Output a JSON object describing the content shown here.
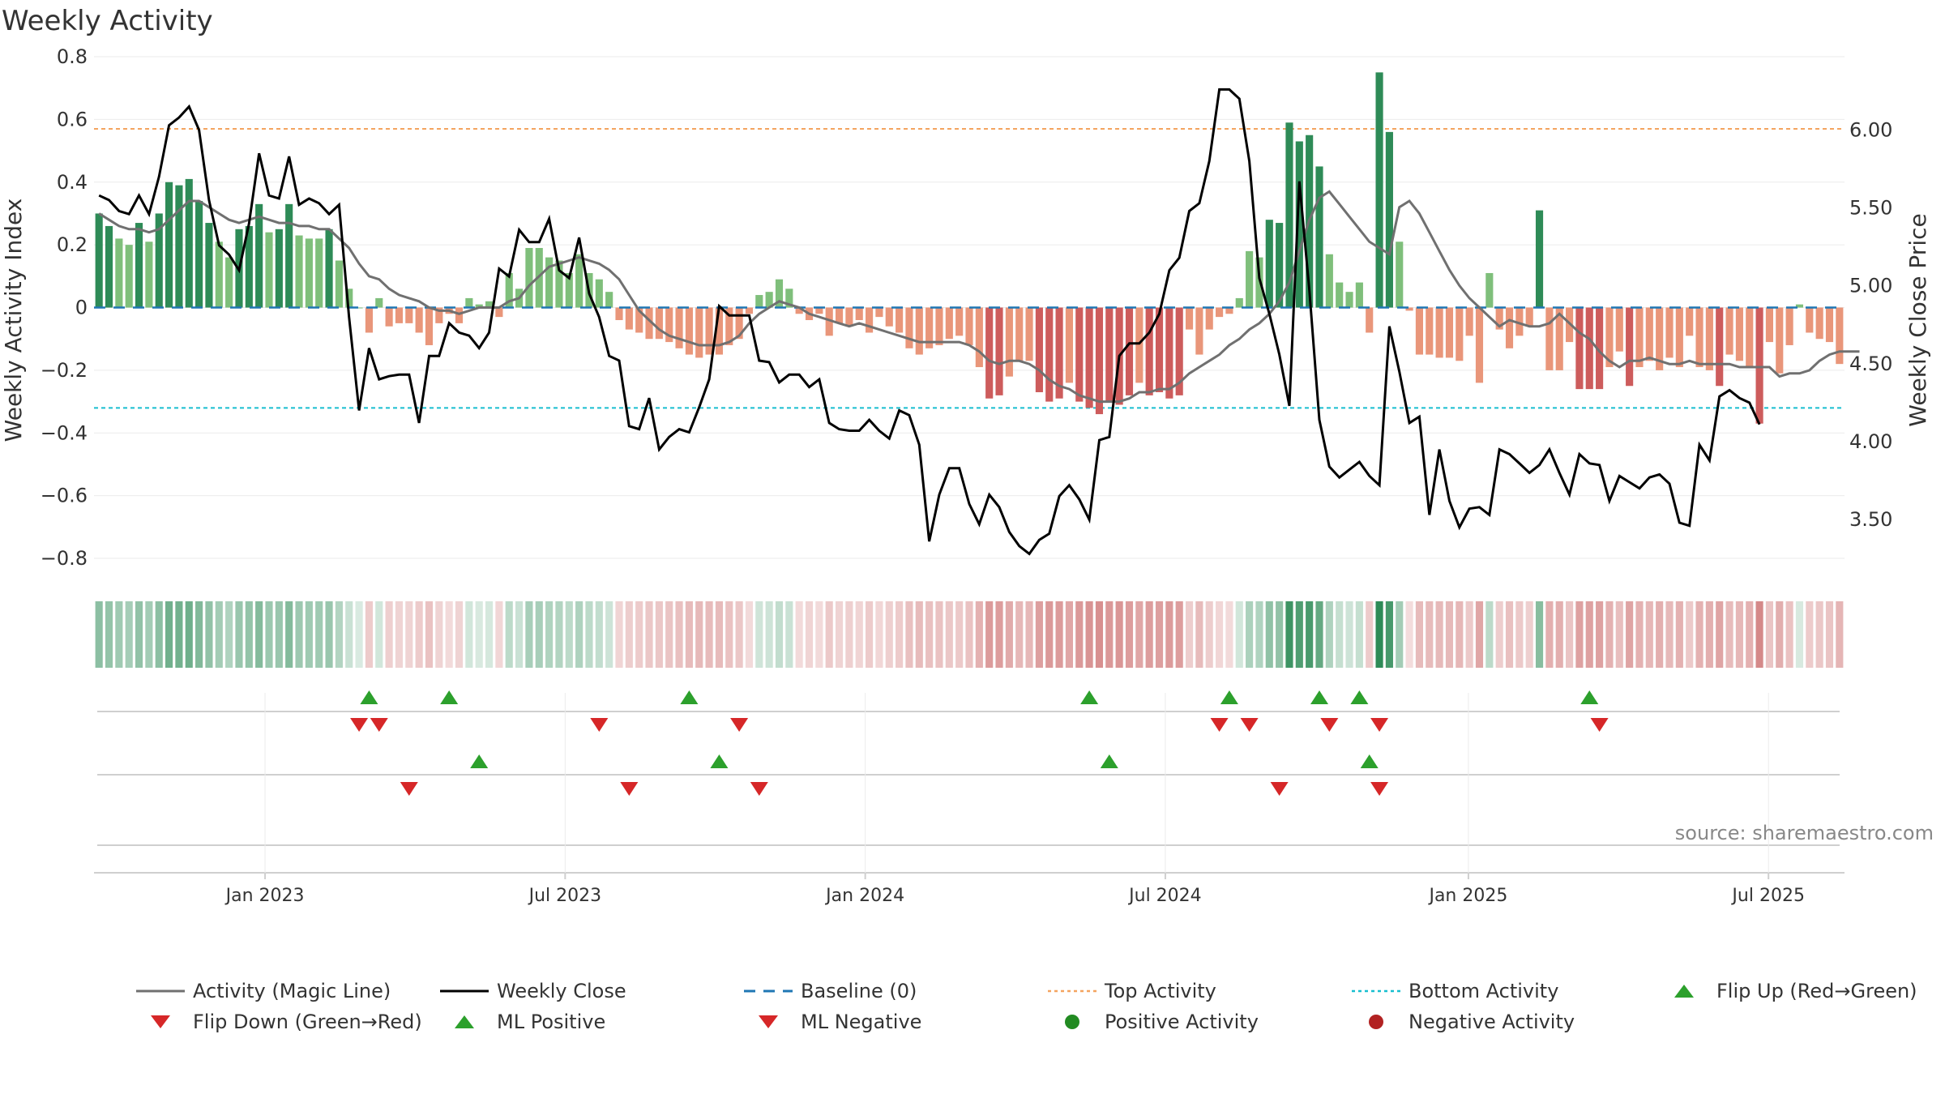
{
  "title": "Weekly Activity",
  "source": "source: sharemaestro.com",
  "colors": {
    "pos_strong": "#2e8b57",
    "pos_light": "#7fbf7b",
    "neg_strong": "#cd5c5c",
    "neg_light": "#e9967a",
    "magic_line": "#707070",
    "close_line": "#000000",
    "baseline": "#1f77b4",
    "top": "#f4a460",
    "bottom": "#17becf",
    "flip_up": "#2ca02c",
    "flip_down": "#d62728"
  },
  "chart_data": {
    "type": "bar",
    "title": "Weekly Activity",
    "ylabel": "Weekly Activity Index",
    "y2label": "Weekly Close Price",
    "ylim": [
      -0.88,
      0.8
    ],
    "y_ticks": [
      "0.8",
      "0.6",
      "0.4",
      "0.2",
      "0",
      "−0.2",
      "−0.4",
      "−0.6",
      "−0.8"
    ],
    "y_tick_values": [
      0.8,
      0.6,
      0.4,
      0.2,
      0,
      -0.2,
      -0.4,
      -0.6,
      -0.8
    ],
    "y2lim": [
      3.09,
      6.47
    ],
    "y2_ticks": [
      "6.00",
      "5.50",
      "5.00",
      "4.50",
      "4.00",
      "3.50"
    ],
    "y2_tick_values": [
      6.0,
      5.5,
      5.0,
      4.5,
      4.0,
      3.5
    ],
    "x_ticks": [
      "Jan 2023",
      "Jul 2023",
      "Jan 2024",
      "Jul 2024",
      "Jan 2025",
      "Jul 2025"
    ],
    "x_tick_weeks": [
      16.6,
      46.6,
      76.6,
      106.6,
      136.9,
      166.9
    ],
    "top_activity": 0.57,
    "bottom_activity": -0.32,
    "baseline": 0,
    "series": [
      {
        "name": "Weekly Activity Index",
        "values": [
          0.3,
          0.26,
          0.22,
          0.2,
          0.27,
          0.21,
          0.3,
          0.4,
          0.39,
          0.41,
          0.34,
          0.27,
          0.21,
          0.16,
          0.25,
          0.26,
          0.33,
          0.24,
          0.25,
          0.33,
          0.23,
          0.22,
          0.22,
          0.25,
          0.15,
          0.06,
          0,
          -0.08,
          0.03,
          -0.06,
          -0.05,
          -0.05,
          -0.08,
          -0.12,
          -0.05,
          -0.02,
          -0.05,
          0.03,
          0.01,
          0.02,
          -0.03,
          0.11,
          0.06,
          0.19,
          0.19,
          0.16,
          0.15,
          0.11,
          0.17,
          0.11,
          0.09,
          0.05,
          -0.04,
          -0.07,
          -0.08,
          -0.1,
          -0.1,
          -0.11,
          -0.13,
          -0.15,
          -0.16,
          -0.15,
          -0.15,
          -0.12,
          -0.1,
          -0.02,
          0.04,
          0.05,
          0.09,
          0.06,
          -0.02,
          -0.04,
          -0.02,
          -0.09,
          -0.05,
          -0.06,
          -0.04,
          -0.08,
          -0.03,
          -0.06,
          -0.08,
          -0.13,
          -0.15,
          -0.13,
          -0.12,
          -0.1,
          -0.09,
          -0.12,
          -0.19,
          -0.29,
          -0.28,
          -0.22,
          -0.17,
          -0.17,
          -0.27,
          -0.3,
          -0.29,
          -0.24,
          -0.3,
          -0.32,
          -0.34,
          -0.3,
          -0.31,
          -0.28,
          -0.24,
          -0.28,
          -0.27,
          -0.29,
          -0.28,
          -0.07,
          -0.15,
          -0.07,
          -0.03,
          -0.02,
          0.03,
          0.18,
          0.16,
          0.28,
          0.27,
          0.59,
          0.53,
          0.55,
          0.45,
          0.17,
          0.08,
          0.05,
          0.08,
          -0.08,
          0.75,
          0.56,
          0.21,
          -0.01,
          -0.15,
          -0.15,
          -0.16,
          -0.16,
          -0.17,
          -0.09,
          -0.24,
          0.11,
          -0.07,
          -0.13,
          -0.09,
          -0.06,
          0.31,
          -0.2,
          -0.2,
          -0.11,
          -0.26,
          -0.26,
          -0.26,
          -0.19,
          -0.14,
          -0.25,
          -0.19,
          -0.17,
          -0.2,
          -0.16,
          -0.19,
          -0.09,
          -0.19,
          -0.2,
          -0.25,
          -0.15,
          -0.17,
          -0.19,
          -0.37,
          -0.11,
          -0.21,
          -0.12,
          0.01,
          -0.08,
          -0.1,
          -0.11,
          -0.18
        ]
      },
      {
        "name": "Activity (Magic Line)",
        "values": [
          0.3,
          0.28,
          0.26,
          0.25,
          0.25,
          0.24,
          0.25,
          0.28,
          0.31,
          0.34,
          0.34,
          0.32,
          0.3,
          0.28,
          0.27,
          0.28,
          0.29,
          0.28,
          0.27,
          0.27,
          0.26,
          0.26,
          0.25,
          0.25,
          0.22,
          0.19,
          0.14,
          0.1,
          0.09,
          0.06,
          0.04,
          0.03,
          0.02,
          0.0,
          -0.01,
          -0.01,
          -0.02,
          -0.01,
          0.0,
          0.0,
          0.0,
          0.02,
          0.03,
          0.07,
          0.1,
          0.13,
          0.14,
          0.15,
          0.16,
          0.15,
          0.14,
          0.12,
          0.09,
          0.04,
          -0.01,
          -0.04,
          -0.07,
          -0.09,
          -0.1,
          -0.11,
          -0.12,
          -0.12,
          -0.12,
          -0.11,
          -0.09,
          -0.05,
          -0.02,
          0.0,
          0.02,
          0.01,
          0.0,
          -0.02,
          -0.03,
          -0.04,
          -0.05,
          -0.06,
          -0.05,
          -0.06,
          -0.07,
          -0.08,
          -0.09,
          -0.1,
          -0.11,
          -0.11,
          -0.11,
          -0.11,
          -0.11,
          -0.12,
          -0.14,
          -0.17,
          -0.18,
          -0.17,
          -0.17,
          -0.18,
          -0.2,
          -0.23,
          -0.25,
          -0.26,
          -0.28,
          -0.29,
          -0.3,
          -0.3,
          -0.3,
          -0.29,
          -0.27,
          -0.27,
          -0.26,
          -0.26,
          -0.24,
          -0.21,
          -0.19,
          -0.17,
          -0.15,
          -0.12,
          -0.1,
          -0.07,
          -0.05,
          -0.02,
          0.02,
          0.08,
          0.18,
          0.28,
          0.35,
          0.37,
          0.33,
          0.29,
          0.25,
          0.21,
          0.19,
          0.17,
          0.32,
          0.34,
          0.3,
          0.24,
          0.18,
          0.12,
          0.07,
          0.03,
          0.0,
          -0.03,
          -0.06,
          -0.04,
          -0.05,
          -0.06,
          -0.06,
          -0.05,
          -0.02,
          -0.05,
          -0.08,
          -0.1,
          -0.14,
          -0.17,
          -0.19,
          -0.17,
          -0.17,
          -0.16,
          -0.17,
          -0.18,
          -0.18,
          -0.17,
          -0.18,
          -0.18,
          -0.18,
          -0.18,
          -0.19,
          -0.19,
          -0.19,
          -0.19,
          -0.22,
          -0.21,
          -0.21,
          -0.2,
          -0.17,
          -0.15,
          -0.14,
          -0.14,
          -0.14
        ]
      },
      {
        "name": "Weekly Close",
        "values": [
          5.58,
          5.55,
          5.48,
          5.46,
          5.58,
          5.46,
          5.7,
          6.03,
          6.08,
          6.15,
          6.0,
          5.55,
          5.26,
          5.2,
          5.1,
          5.4,
          5.85,
          5.58,
          5.56,
          5.83,
          5.52,
          5.56,
          5.53,
          5.46,
          5.52,
          4.8,
          4.2,
          4.6,
          4.4,
          4.42,
          4.43,
          4.43,
          4.12,
          4.55,
          4.55,
          4.76,
          4.7,
          4.68,
          4.6,
          4.7,
          5.11,
          5.06,
          5.36,
          5.28,
          5.28,
          5.43,
          5.1,
          5.05,
          5.31,
          4.95,
          4.8,
          4.55,
          4.52,
          4.1,
          4.08,
          4.28,
          3.95,
          4.03,
          4.08,
          4.06,
          4.22,
          4.4,
          4.87,
          4.81,
          4.81,
          4.81,
          4.52,
          4.51,
          4.38,
          4.43,
          4.43,
          4.35,
          4.4,
          4.12,
          4.08,
          4.07,
          4.07,
          4.14,
          4.07,
          4.02,
          4.2,
          4.17,
          3.98,
          3.36,
          3.66,
          3.83,
          3.83,
          3.6,
          3.47,
          3.66,
          3.58,
          3.42,
          3.33,
          3.28,
          3.37,
          3.41,
          3.65,
          3.72,
          3.63,
          3.5,
          4.01,
          4.03,
          4.55,
          4.63,
          4.63,
          4.7,
          4.82,
          5.1,
          5.18,
          5.48,
          5.53,
          5.8,
          6.26,
          6.26,
          6.2,
          5.8,
          5.05,
          4.82,
          4.56,
          4.23,
          5.67,
          4.97,
          4.14,
          3.84,
          3.77,
          3.82,
          3.87,
          3.78,
          3.72,
          4.74,
          4.45,
          4.12,
          4.16,
          3.53,
          3.95,
          3.62,
          3.45,
          3.57,
          3.58,
          3.53,
          3.95,
          3.92,
          3.86,
          3.8,
          3.85,
          3.95,
          3.8,
          3.66,
          3.92,
          3.86,
          3.85,
          3.62,
          3.78,
          3.74,
          3.7,
          3.77,
          3.79,
          3.73,
          3.48,
          3.46,
          3.98,
          3.88,
          4.29,
          4.33,
          4.28,
          4.25,
          4.11
        ]
      }
    ],
    "flip_up_weeks": [
      27,
      35,
      59,
      99,
      113,
      122,
      126,
      149
    ],
    "flip_down_weeks": [
      26,
      28,
      50,
      64,
      112,
      115,
      123,
      128,
      150
    ],
    "ml_positive_weeks": [
      38,
      62,
      101,
      127
    ],
    "ml_negative_weeks": [
      31,
      53,
      66,
      118,
      128
    ],
    "legend": [
      {
        "label": "Activity (Magic Line)",
        "marker": "line-gray"
      },
      {
        "label": "Weekly Close",
        "marker": "line-black"
      },
      {
        "label": "Baseline (0)",
        "marker": "dash-blue"
      },
      {
        "label": "Top Activity",
        "marker": "dot-orange"
      },
      {
        "label": "Bottom Activity",
        "marker": "dot-cyan"
      },
      {
        "label": "Flip Up (Red→Green)",
        "marker": "tri-up-green"
      },
      {
        "label": "Flip Down (Green→Red)",
        "marker": "tri-down-red"
      },
      {
        "label": "ML Positive",
        "marker": "tri-up-green"
      },
      {
        "label": "ML Negative",
        "marker": "tri-down-red"
      },
      {
        "label": "Positive Activity",
        "marker": "circle-green"
      },
      {
        "label": "Negative Activity",
        "marker": "circle-red"
      }
    ]
  }
}
